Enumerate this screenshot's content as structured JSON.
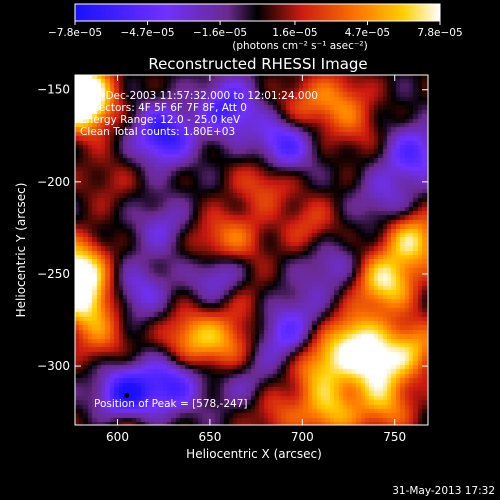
{
  "chart_data": {
    "type": "heatmap",
    "title": "Reconstructed RHESSI Image",
    "xlabel": "Heliocentric X (arcsec)",
    "ylabel": "Heliocentric Y (arcsec)",
    "xlim": [
      577,
      768
    ],
    "ylim": [
      -332,
      -142
    ],
    "x_ticks": [
      600,
      650,
      700,
      750
    ],
    "y_ticks": [
      -150,
      -200,
      -250,
      -300
    ],
    "x_tick_labels": [
      "600",
      "650",
      "700",
      "750"
    ],
    "y_tick_labels": [
      "−150",
      "−200",
      "−250",
      "−300"
    ],
    "colorbar": {
      "range": [
        -7.8e-05,
        7.8e-05
      ],
      "ticks": [
        -7.8e-05,
        -4.7e-05,
        -1.6e-05,
        1.6e-05,
        4.7e-05,
        7.8e-05
      ],
      "tick_labels": [
        "−7.8e−05",
        "−4.7e−05",
        "−1.6e−05",
        "1.6e−05",
        "4.7e−05",
        "7.8e−05"
      ],
      "unit_label": "(photons cm⁻² s⁻¹ asec⁻²)"
    },
    "annotations": [
      "1-Dec-2003 11:57:32.000 to 12:01:24.000",
      "Detectors: 4F 5F 6F 7F 8F, Att 0",
      "Energy Range: 12.0 - 25.0 keV",
      "Clean    Total counts: 1.80E+03"
    ],
    "peak_label": "Position of Peak = [578,-247]",
    "peak_position": [
      578,
      -247
    ],
    "marker_position": [
      605,
      -316
    ],
    "sources": [
      {
        "x": 580,
        "y": -150,
        "value": 7.8e-05
      },
      {
        "x": 582,
        "y": -160,
        "value": 6e-05
      },
      {
        "x": 578,
        "y": -247,
        "value": 7.8e-05
      },
      {
        "x": 582,
        "y": -265,
        "value": 6.5e-05
      },
      {
        "x": 592,
        "y": -285,
        "value": 3e-05
      },
      {
        "x": 595,
        "y": -200,
        "value": 1.5e-05
      },
      {
        "x": 640,
        "y": -285,
        "value": 5e-05
      },
      {
        "x": 660,
        "y": -288,
        "value": 4e-05
      },
      {
        "x": 650,
        "y": -235,
        "value": 3e-05
      },
      {
        "x": 665,
        "y": -232,
        "value": 3.2e-05
      },
      {
        "x": 668,
        "y": -262,
        "value": 2e-05
      },
      {
        "x": 680,
        "y": -200,
        "value": 3.5e-05
      },
      {
        "x": 705,
        "y": -225,
        "value": 2.8e-05
      },
      {
        "x": 700,
        "y": -160,
        "value": 3e-05
      },
      {
        "x": 720,
        "y": -155,
        "value": 3.5e-05
      },
      {
        "x": 730,
        "y": -172,
        "value": 2e-05
      },
      {
        "x": 745,
        "y": -255,
        "value": 7e-05
      },
      {
        "x": 760,
        "y": -232,
        "value": 6.5e-05
      },
      {
        "x": 728,
        "y": -285,
        "value": 6e-05
      },
      {
        "x": 710,
        "y": -300,
        "value": 5.5e-05
      },
      {
        "x": 740,
        "y": -300,
        "value": 6.5e-05
      },
      {
        "x": 760,
        "y": -290,
        "value": 5e-05
      },
      {
        "x": 715,
        "y": -325,
        "value": 5.5e-05
      },
      {
        "x": 745,
        "y": -322,
        "value": 4.5e-05
      },
      {
        "x": 685,
        "y": -325,
        "value": 3e-05
      },
      {
        "x": 605,
        "y": -335,
        "value": 3e-05
      },
      {
        "x": 625,
        "y": -175,
        "value": -7e-05
      },
      {
        "x": 660,
        "y": -160,
        "value": -6e-05
      },
      {
        "x": 605,
        "y": -316,
        "value": -7.8e-05
      },
      {
        "x": 630,
        "y": -310,
        "value": -5.5e-05
      },
      {
        "x": 655,
        "y": -250,
        "value": -5e-05
      },
      {
        "x": 690,
        "y": -180,
        "value": -6e-05
      },
      {
        "x": 760,
        "y": -185,
        "value": -5e-05
      },
      {
        "x": 745,
        "y": -210,
        "value": -3e-05
      },
      {
        "x": 690,
        "y": -285,
        "value": -4e-05
      },
      {
        "x": 625,
        "y": -225,
        "value": -3e-05
      },
      {
        "x": 612,
        "y": -260,
        "value": -3.5e-05
      },
      {
        "x": 670,
        "y": -310,
        "value": -2.5e-05
      },
      {
        "x": 715,
        "y": -245,
        "value": -3e-05
      },
      {
        "x": 700,
        "y": -270,
        "value": -2e-05
      }
    ]
  },
  "footer": {
    "timestamp": "31-May-2013 17:32"
  }
}
